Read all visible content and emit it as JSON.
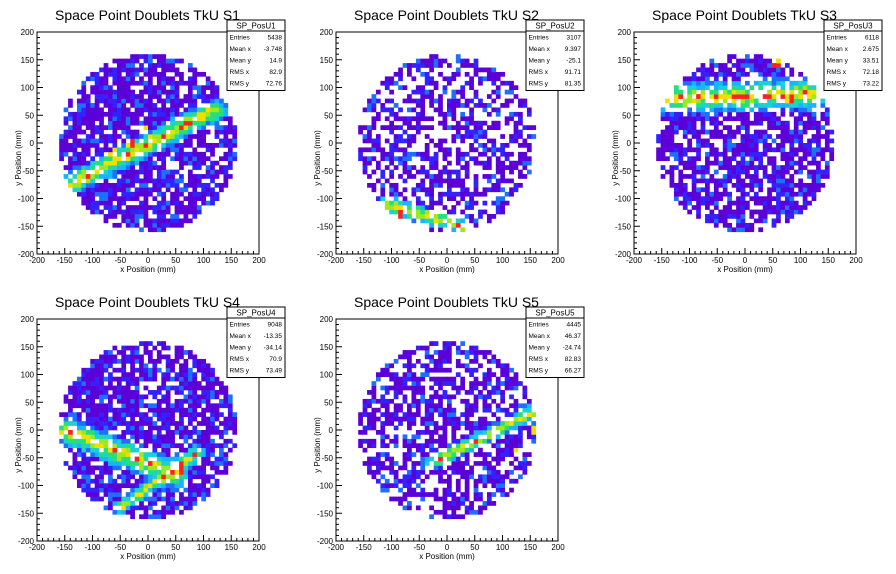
{
  "chart_data": [
    {
      "type": "heatmap",
      "title": "Space Point Doublets TkU S1",
      "xlabel": "x Position (mm)",
      "ylabel": "y Position (mm)",
      "xlim": [
        -200,
        200
      ],
      "ylim": [
        -200,
        200
      ],
      "xticks": [
        "-200",
        "-150",
        "-100",
        "-50",
        "0",
        "50",
        "100",
        "150",
        "200"
      ],
      "yticks": [
        "-200",
        "-150",
        "-100",
        "-50",
        "0",
        "50",
        "100",
        "150",
        "200"
      ],
      "colormap": [
        "#5b00d6",
        "#3322ff",
        "#1f6fff",
        "#1ab3ff",
        "#19d2d2",
        "#25e07a",
        "#9fe81f",
        "#f0e000",
        "#ff2020"
      ],
      "pattern": {
        "radius": 160,
        "density": 0.78,
        "band": {
          "x1": -150,
          "y1": -80,
          "x2": 120,
          "y2": 60,
          "width": 22
        },
        "hot": [
          [
            -30,
            0
          ],
          [
            -60,
            -20
          ],
          [
            0,
            20
          ]
        ]
      },
      "stats": {
        "name": "SP_PosU1",
        "rows": [
          {
            "label": "Entries",
            "value": "5438"
          },
          {
            "label": "Mean x",
            "value": "-3.748"
          },
          {
            "label": "Mean y",
            "value": "14.9"
          },
          {
            "label": "RMS x",
            "value": "82.9"
          },
          {
            "label": "RMS y",
            "value": "72.76"
          }
        ]
      }
    },
    {
      "type": "heatmap",
      "title": "Space Point Doublets TkU S2",
      "xlabel": "x Position (mm)",
      "ylabel": "y Position (mm)",
      "xlim": [
        -200,
        200
      ],
      "ylim": [
        -200,
        200
      ],
      "xticks": [
        "-200",
        "-150",
        "-100",
        "-50",
        "0",
        "50",
        "100",
        "150",
        "200"
      ],
      "yticks": [
        "-200",
        "-150",
        "-100",
        "-50",
        "0",
        "50",
        "100",
        "150",
        "200"
      ],
      "colormap": [
        "#5b00d6",
        "#3322ff",
        "#1f6fff",
        "#1ab3ff",
        "#19d2d2",
        "#25e07a",
        "#9fe81f",
        "#f0e000",
        "#ff2020"
      ],
      "pattern": {
        "radius": 160,
        "density": 0.55,
        "band": {
          "x1": -110,
          "y1": -110,
          "x2": 30,
          "y2": -150,
          "width": 16
        },
        "hot": [
          [
            160,
            0
          ],
          [
            -80,
            -130
          ]
        ]
      },
      "stats": {
        "name": "SP_PosU2",
        "rows": [
          {
            "label": "Entries",
            "value": "3107"
          },
          {
            "label": "Mean x",
            "value": "9.397"
          },
          {
            "label": "Mean y",
            "value": "-25.1"
          },
          {
            "label": "RMS x",
            "value": "91.71"
          },
          {
            "label": "RMS y",
            "value": "81.35"
          }
        ]
      }
    },
    {
      "type": "heatmap",
      "title": "Space Point Doublets TkU S3",
      "xlabel": "x Position (mm)",
      "ylabel": "y Position (mm)",
      "xlim": [
        -200,
        200
      ],
      "ylim": [
        -200,
        200
      ],
      "xticks": [
        "-200",
        "-150",
        "-100",
        "-50",
        "0",
        "50",
        "100",
        "150",
        "200"
      ],
      "yticks": [
        "-200",
        "-150",
        "-100",
        "-50",
        "0",
        "50",
        "100",
        "150",
        "200"
      ],
      "colormap": [
        "#5b00d6",
        "#3322ff",
        "#1f6fff",
        "#1ab3ff",
        "#19d2d2",
        "#25e07a",
        "#9fe81f",
        "#f0e000",
        "#ff2020"
      ],
      "pattern": {
        "radius": 160,
        "density": 0.72,
        "band": {
          "x1": -150,
          "y1": 80,
          "x2": 150,
          "y2": 90,
          "width": 30
        },
        "hot": [
          [
            60,
            140
          ],
          [
            20,
            90
          ],
          [
            80,
            80
          ]
        ]
      },
      "stats": {
        "name": "SP_PosU3",
        "rows": [
          {
            "label": "Entries",
            "value": "6118"
          },
          {
            "label": "Mean x",
            "value": "2.675"
          },
          {
            "label": "Mean y",
            "value": "33.51"
          },
          {
            "label": "RMS x",
            "value": "72.18"
          },
          {
            "label": "RMS y",
            "value": "73.22"
          }
        ]
      }
    },
    {
      "type": "heatmap",
      "title": "Space Point Doublets TkU S4",
      "xlabel": "x Position (mm)",
      "ylabel": "y Position (mm)",
      "xlim": [
        -200,
        200
      ],
      "ylim": [
        -200,
        200
      ],
      "xticks": [
        "-200",
        "-150",
        "-100",
        "-50",
        "0",
        "50",
        "100",
        "150",
        "200"
      ],
      "yticks": [
        "-200",
        "-150",
        "-100",
        "-50",
        "0",
        "50",
        "100",
        "150",
        "200"
      ],
      "colormap": [
        "#5b00d6",
        "#3322ff",
        "#1f6fff",
        "#1ab3ff",
        "#19d2d2",
        "#25e07a",
        "#9fe81f",
        "#f0e000",
        "#ff2020"
      ],
      "pattern": {
        "radius": 160,
        "density": 0.8,
        "band": {
          "x1": -50,
          "y1": -140,
          "x2": 90,
          "y2": -40,
          "width": 14
        },
        "band2": {
          "x1": -150,
          "y1": 0,
          "x2": 50,
          "y2": -80,
          "width": 26
        },
        "hot": [
          [
            -50,
            -140
          ],
          [
            60,
            -70
          ]
        ]
      },
      "stats": {
        "name": "SP_PosU4",
        "rows": [
          {
            "label": "Entries",
            "value": "9048"
          },
          {
            "label": "Mean x",
            "value": "-13.35"
          },
          {
            "label": "Mean y",
            "value": "-34.14"
          },
          {
            "label": "RMS x",
            "value": "70.9"
          },
          {
            "label": "RMS y",
            "value": "73.49"
          }
        ]
      }
    },
    {
      "type": "heatmap",
      "title": "Space Point Doublets TkU S5",
      "xlabel": "x Position (mm)",
      "ylabel": "y Position (mm)",
      "xlim": [
        -200,
        200
      ],
      "ylim": [
        -200,
        200
      ],
      "xticks": [
        "-200",
        "-150",
        "-100",
        "-50",
        "0",
        "50",
        "100",
        "150",
        "200"
      ],
      "yticks": [
        "-200",
        "-150",
        "-100",
        "-50",
        "0",
        "50",
        "100",
        "150",
        "200"
      ],
      "colormap": [
        "#5b00d6",
        "#3322ff",
        "#1f6fff",
        "#1ab3ff",
        "#19d2d2",
        "#25e07a",
        "#9fe81f",
        "#f0e000",
        "#ff2020"
      ],
      "pattern": {
        "radius": 160,
        "density": 0.62,
        "band": {
          "x1": -30,
          "y1": -60,
          "x2": 170,
          "y2": 40,
          "width": 14
        },
        "hot": [
          [
            150,
            0
          ],
          [
            130,
            -40
          ]
        ]
      },
      "stats": {
        "name": "SP_PosU5",
        "rows": [
          {
            "label": "Entries",
            "value": "4445"
          },
          {
            "label": "Mean x",
            "value": "46.37"
          },
          {
            "label": "Mean y",
            "value": "-24.74"
          },
          {
            "label": "RMS x",
            "value": "82.83"
          },
          {
            "label": "RMS y",
            "value": "66.27"
          }
        ]
      }
    }
  ]
}
